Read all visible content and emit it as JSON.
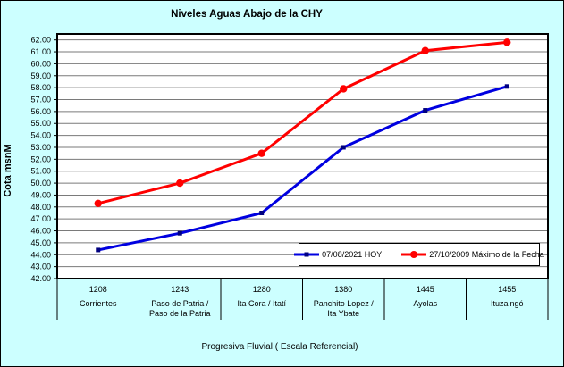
{
  "window": {
    "title": "Niveles Aguas Abajo de la CHY"
  },
  "chart_data": {
    "type": "line",
    "title": "Niveles Aguas Abajo de la CHY",
    "xlabel": "Progresiva Fluvial ( Escala Referencial)",
    "ylabel": "Cota msnM",
    "ylim": [
      42,
      62.5
    ],
    "ytick_min": 42,
    "ytick_max": 62,
    "ytick_step": 1,
    "ytick_decimals": 2,
    "grid": true,
    "legend_position": "inside-bottom-right",
    "categories": [
      {
        "progresiva": "1208",
        "name": "Corrientes"
      },
      {
        "progresiva": "1243",
        "name": "Paso de Patria / Paso de la Patria"
      },
      {
        "progresiva": "1280",
        "name": "Ita Cora / Itatí"
      },
      {
        "progresiva": "1380",
        "name": "Panchito Lopez / Ita Ybate"
      },
      {
        "progresiva": "1445",
        "name": "Ayolas"
      },
      {
        "progresiva": "1455",
        "name": "Ituzaingó"
      }
    ],
    "series": [
      {
        "name": "07/08/2021 HOY",
        "color": "#0000E0",
        "marker": "square",
        "marker_color": "#000080",
        "values": [
          44.4,
          45.8,
          47.5,
          53.0,
          56.1,
          58.1
        ]
      },
      {
        "name": "27/10/2009 Máximo de la Fecha",
        "color": "#FF0000",
        "marker": "circle",
        "marker_color": "#FF0000",
        "values": [
          48.3,
          50.0,
          52.5,
          57.9,
          61.1,
          61.8
        ]
      }
    ],
    "colors": {
      "background": "#CCFFFF",
      "plot_background": "#FFFFFF",
      "gridline": "#7A7A7A",
      "axis": "#000000"
    }
  }
}
